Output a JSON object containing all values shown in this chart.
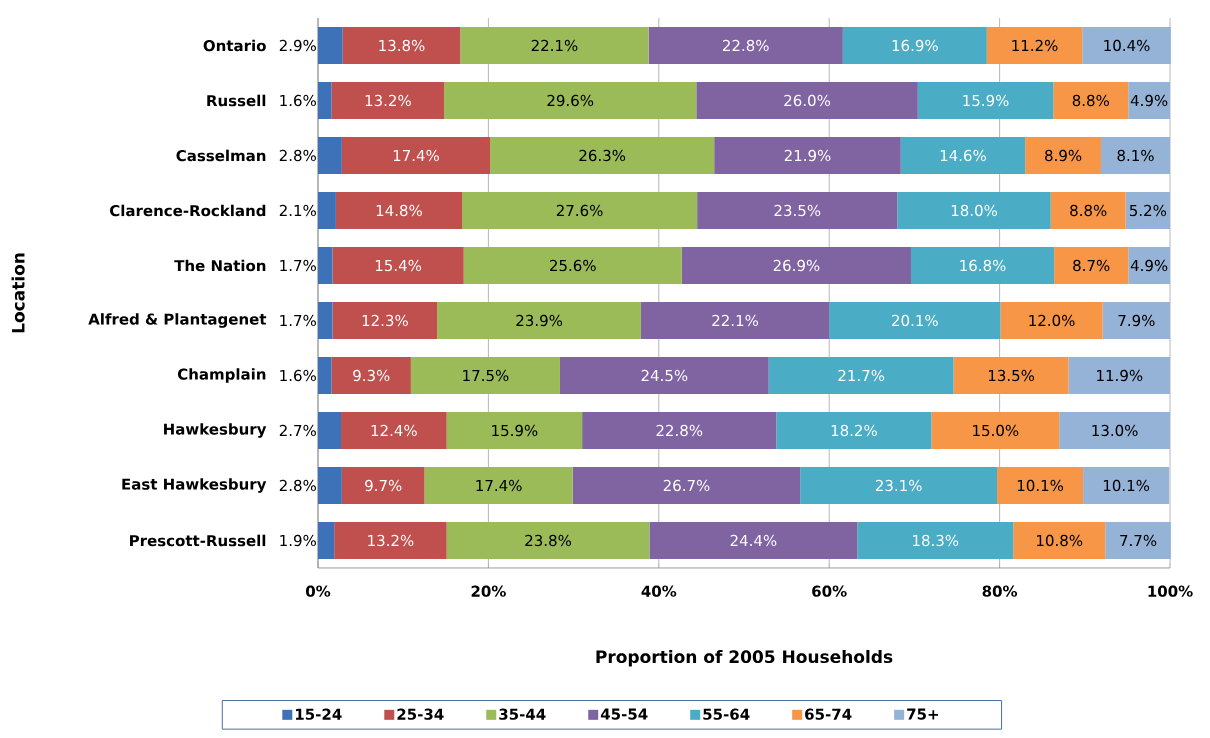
{
  "chart_data": {
    "type": "bar",
    "orientation": "horizontal",
    "stacked": true,
    "xlabel": "Proportion of 2005 Households",
    "ylabel": "Location",
    "categories": [
      "Ontario",
      "Russell",
      "Casselman",
      "Clarence-Rockland",
      "The Nation",
      "Alfred & Plantagenet",
      "Champlain",
      "Hawkesbury",
      "East Hawkesbury",
      "Prescott-Russell"
    ],
    "xlim": [
      0,
      100
    ],
    "xticks": [
      {
        "value": 0,
        "label": "0%"
      },
      {
        "value": 20,
        "label": "20%"
      },
      {
        "value": 40,
        "label": "40%"
      },
      {
        "value": 60,
        "label": "60%"
      },
      {
        "value": 80,
        "label": "80%"
      },
      {
        "value": 100,
        "label": "100%"
      }
    ],
    "grid": "x",
    "legend": "bottom",
    "series": [
      {
        "name": "15-24",
        "color": "#3d72b8",
        "values": [
          2.9,
          1.6,
          2.8,
          2.1,
          1.7,
          1.7,
          1.6,
          2.7,
          2.8,
          1.9
        ],
        "value_labels": [
          "2.9%",
          "1.6%",
          "2.8%",
          "2.1%",
          "1.7%",
          "1.7%",
          "1.6%",
          "2.7%",
          "2.8%",
          "1.9%"
        ]
      },
      {
        "name": "25-34",
        "color": "#c0504d",
        "values": [
          13.8,
          13.2,
          17.4,
          14.8,
          15.4,
          12.3,
          9.3,
          12.4,
          9.7,
          13.2
        ],
        "value_labels": [
          "13.8%",
          "13.2%",
          "17.4%",
          "14.8%",
          "15.4%",
          "12.3%",
          "9.3%",
          "12.4%",
          "9.7%",
          "13.2%"
        ]
      },
      {
        "name": "35-44",
        "color": "#9bbb59",
        "values": [
          22.1,
          29.6,
          26.3,
          27.6,
          25.6,
          23.9,
          17.5,
          15.9,
          17.4,
          23.8
        ],
        "value_labels": [
          "22.1%",
          "29.6%",
          "26.3%",
          "27.6%",
          "25.6%",
          "23.9%",
          "17.5%",
          "15.9%",
          "17.4%",
          "23.8%"
        ]
      },
      {
        "name": "45-54",
        "color": "#8064a2",
        "values": [
          22.8,
          26.0,
          21.9,
          23.5,
          26.9,
          22.1,
          24.5,
          22.8,
          26.7,
          24.4
        ],
        "value_labels": [
          "22.8%",
          "26.0%",
          "21.9%",
          "23.5%",
          "26.9%",
          "22.1%",
          "24.5%",
          "22.8%",
          "26.7%",
          "24.4%"
        ]
      },
      {
        "name": "55-64",
        "color": "#4bacc6",
        "values": [
          16.9,
          15.9,
          14.6,
          18.0,
          16.8,
          20.1,
          21.7,
          18.2,
          23.1,
          18.3
        ],
        "value_labels": [
          "16.9%",
          "15.9%",
          "14.6%",
          "18.0%",
          "16.8%",
          "20.1%",
          "21.7%",
          "18.2%",
          "23.1%",
          "18.3%"
        ]
      },
      {
        "name": "65-74",
        "color": "#f79646",
        "values": [
          11.2,
          8.8,
          8.9,
          8.8,
          8.7,
          12.0,
          13.5,
          15.0,
          10.1,
          10.8
        ],
        "value_labels": [
          "11.2%",
          "8.8%",
          "8.9%",
          "8.8%",
          "8.7%",
          "12.0%",
          "13.5%",
          "15.0%",
          "10.1%",
          "10.8%"
        ]
      },
      {
        "name": "75+",
        "color": "#95b3d7",
        "values": [
          10.4,
          4.9,
          8.1,
          5.2,
          4.9,
          7.9,
          11.9,
          13.0,
          10.1,
          7.7
        ],
        "value_labels": [
          "10.4%",
          "4.9%",
          "8.1%",
          "5.2%",
          "4.9%",
          "7.9%",
          "11.9%",
          "13.0%",
          "10.1%",
          "7.7%"
        ]
      }
    ]
  }
}
